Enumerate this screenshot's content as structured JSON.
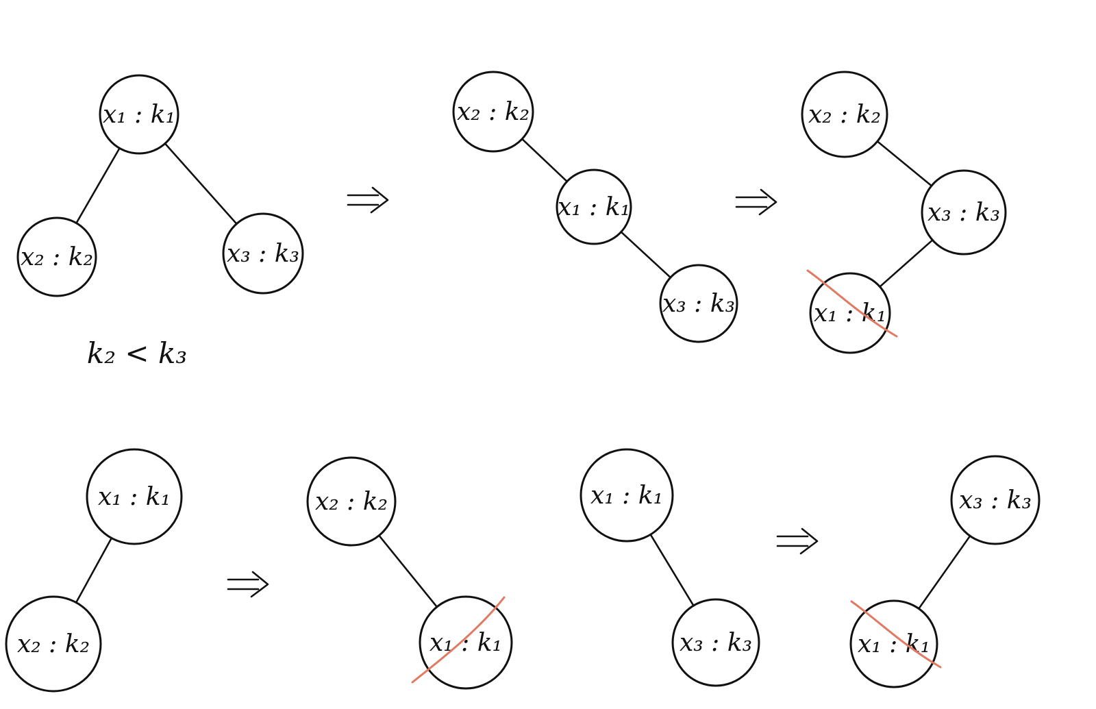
{
  "strike_color": "#e07a63",
  "condition": "k₂ < k₃",
  "arrow_symbol": "⇒",
  "trees": [
    {
      "nodes": [
        {
          "id": "a1",
          "label": "x₁ : k₁"
        },
        {
          "id": "a2",
          "label": "x₂ : k₂"
        },
        {
          "id": "a3",
          "label": "x₃ : k₃"
        }
      ],
      "edges": [
        [
          "a1",
          "a2"
        ],
        [
          "a1",
          "a3"
        ]
      ]
    },
    {
      "nodes": [
        {
          "id": "b2",
          "label": "x₂ : k₂"
        },
        {
          "id": "b1",
          "label": "x₁ : k₁"
        },
        {
          "id": "b3",
          "label": "x₃ : k₃"
        }
      ],
      "edges": [
        [
          "b2",
          "b1"
        ],
        [
          "b1",
          "b3"
        ]
      ]
    },
    {
      "nodes": [
        {
          "id": "c2",
          "label": "x₂ : k₂"
        },
        {
          "id": "c3",
          "label": "x₃ : k₃"
        },
        {
          "id": "c1",
          "label": "x₁ : k₁",
          "struck": true
        }
      ],
      "edges": [
        [
          "c2",
          "c3"
        ],
        [
          "c3",
          "c1"
        ]
      ]
    },
    {
      "nodes": [
        {
          "id": "d1",
          "label": "x₁ : k₁"
        },
        {
          "id": "d2",
          "label": "x₂ : k₂"
        }
      ],
      "edges": [
        [
          "d1",
          "d2"
        ]
      ]
    },
    {
      "nodes": [
        {
          "id": "e2",
          "label": "x₂ : k₂"
        },
        {
          "id": "e1",
          "label": "x₁ : k₁",
          "struck": true
        }
      ],
      "edges": [
        [
          "e2",
          "e1"
        ]
      ]
    },
    {
      "nodes": [
        {
          "id": "f1",
          "label": "x₁ : k₁"
        },
        {
          "id": "f3",
          "label": "x₃ : k₃"
        }
      ],
      "edges": [
        [
          "f1",
          "f3"
        ]
      ]
    },
    {
      "nodes": [
        {
          "id": "g3",
          "label": "x₃ : k₃"
        },
        {
          "id": "g1",
          "label": "x₁ : k₁",
          "struck": true
        }
      ],
      "edges": [
        [
          "g3",
          "g1"
        ]
      ]
    }
  ]
}
